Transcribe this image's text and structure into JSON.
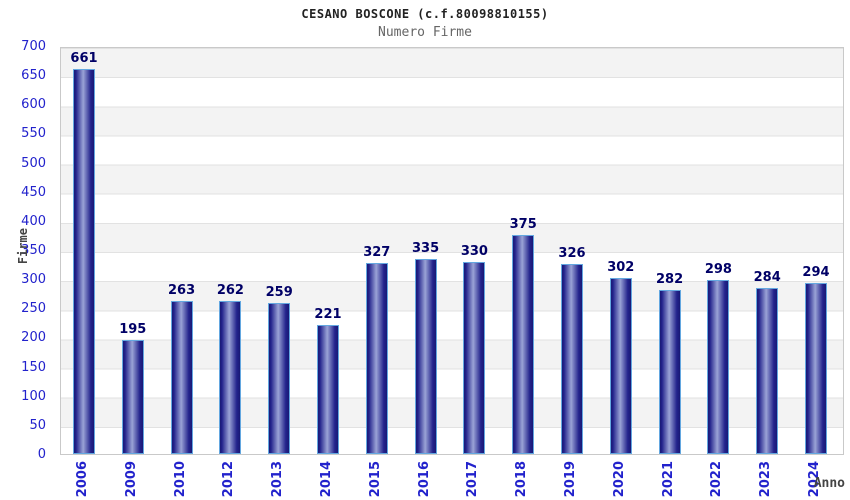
{
  "header": {
    "title": "CESANO BOSCONE (c.f.80098810155)",
    "subtitle": "Numero Firme"
  },
  "chart_data": {
    "type": "bar",
    "title": "CESANO BOSCONE (c.f.80098810155)",
    "subtitle": "Numero Firme",
    "categories": [
      "2006",
      "2009",
      "2010",
      "2012",
      "2013",
      "2014",
      "2015",
      "2016",
      "2017",
      "2018",
      "2019",
      "2020",
      "2021",
      "2022",
      "2023",
      "2024"
    ],
    "values": [
      661,
      195,
      263,
      262,
      259,
      221,
      327,
      335,
      330,
      375,
      326,
      302,
      282,
      298,
      284,
      294
    ],
    "xlabel": "Anno",
    "ylabel": "Firme",
    "ylim": [
      0,
      700
    ],
    "yticks": [
      0,
      50,
      100,
      150,
      200,
      250,
      300,
      350,
      400,
      450,
      500,
      550,
      600,
      650,
      700
    ],
    "grid": "horizontal-bands-alternating",
    "legend": "none"
  },
  "colors": {
    "tick_label": "#2222cc",
    "value_label": "#000066",
    "bar_dark": "#191975",
    "bar_mid": "#23238c",
    "bar_light": "#9aa3d6",
    "bar_border": "#63a7e0",
    "band_gray": "#f3f3f3",
    "band_white": "#ffffff",
    "grid_line": "#e2e2e2",
    "plot_border": "#c9c9c9",
    "title_color": "#222222",
    "subtitle_color": "#666666",
    "axis_label_color": "#444444"
  }
}
